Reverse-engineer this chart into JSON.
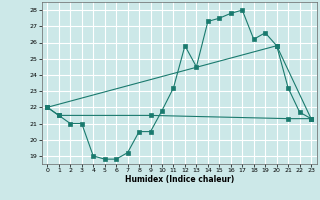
{
  "xlabel": "Humidex (Indice chaleur)",
  "background_color": "#cce8e8",
  "grid_color": "#ffffff",
  "line_color": "#1a7a6e",
  "xlim": [
    -0.5,
    23.5
  ],
  "ylim": [
    18.5,
    28.5
  ],
  "yticks": [
    19,
    20,
    21,
    22,
    23,
    24,
    25,
    26,
    27,
    28
  ],
  "xticks": [
    0,
    1,
    2,
    3,
    4,
    5,
    6,
    7,
    8,
    9,
    10,
    11,
    12,
    13,
    14,
    15,
    16,
    17,
    18,
    19,
    20,
    21,
    22,
    23
  ],
  "line1_x": [
    0,
    1,
    2,
    3,
    4,
    5,
    6,
    7,
    8,
    9,
    10,
    11,
    12,
    13,
    14,
    15,
    16,
    17,
    18,
    19,
    20,
    21,
    22,
    23
  ],
  "line1_y": [
    22.0,
    21.5,
    21.0,
    21.0,
    19.0,
    18.8,
    18.8,
    19.2,
    20.5,
    20.5,
    21.8,
    23.2,
    25.8,
    24.5,
    27.3,
    27.5,
    27.8,
    28.0,
    26.2,
    26.6,
    25.8,
    23.2,
    21.7,
    21.3
  ],
  "line2_x": [
    0,
    1,
    9,
    21,
    23
  ],
  "line2_y": [
    22.0,
    21.5,
    21.5,
    21.3,
    21.3
  ],
  "line3_x": [
    0,
    20,
    23
  ],
  "line3_y": [
    22.0,
    25.8,
    21.3
  ]
}
